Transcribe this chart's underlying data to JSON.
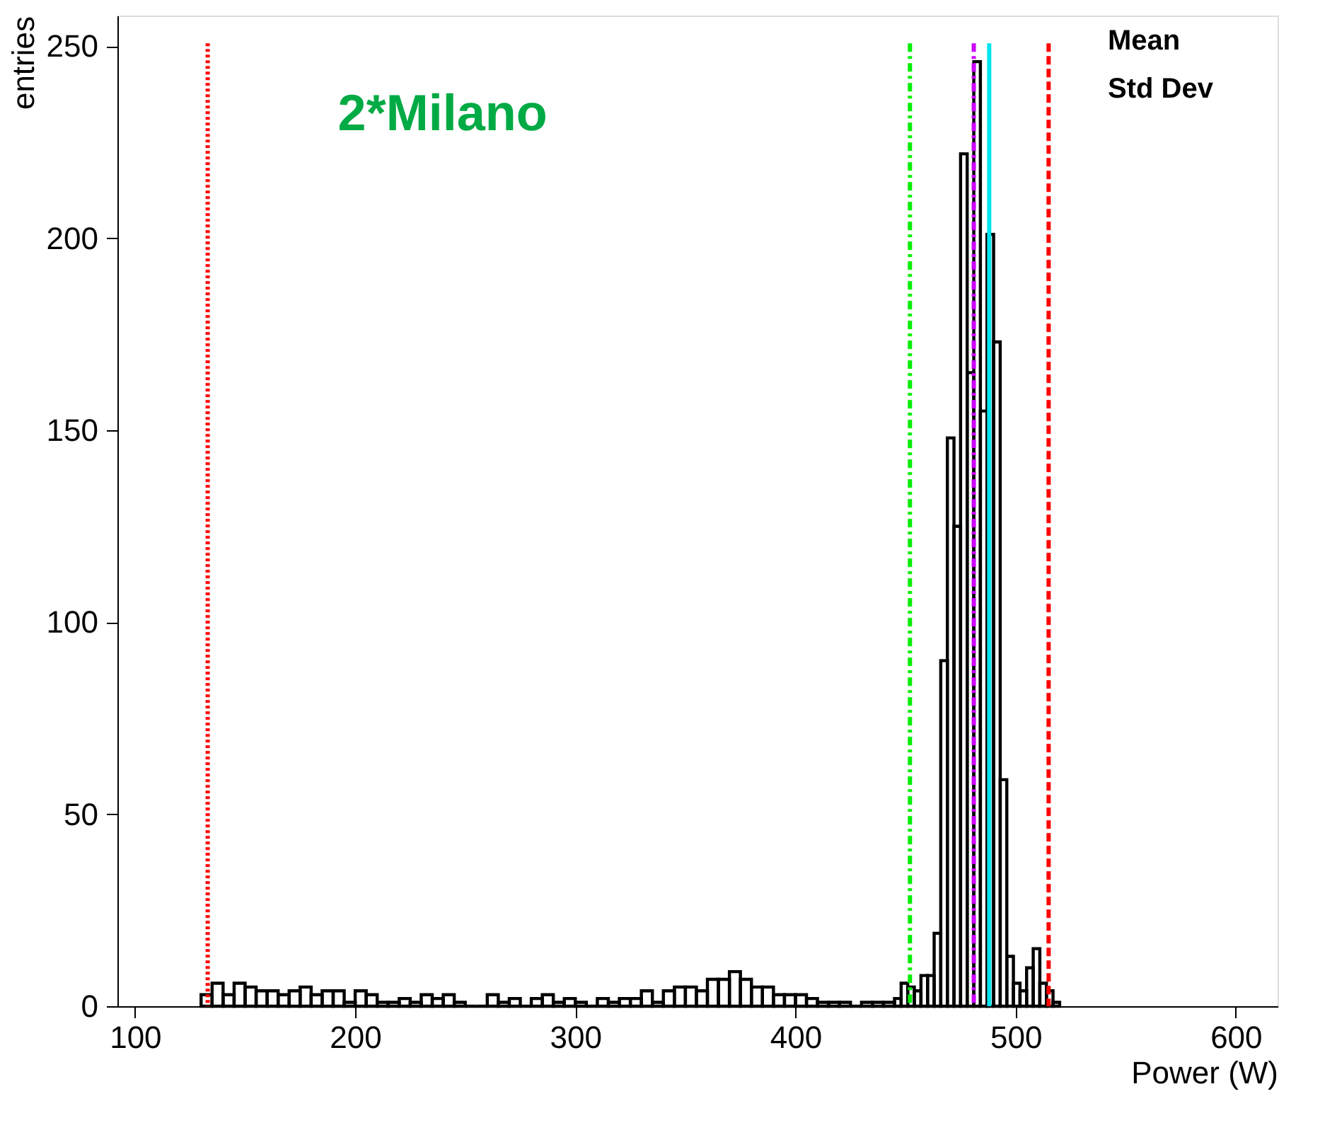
{
  "chart_data": {
    "type": "histogram",
    "xlabel": "Power (W)",
    "ylabel": "entries",
    "bins": [
      130,
      135,
      140,
      145,
      150,
      155,
      160,
      165,
      170,
      175,
      180,
      185,
      190,
      195,
      200,
      205,
      210,
      215,
      220,
      225,
      230,
      235,
      240,
      245,
      250,
      255,
      260,
      265,
      270,
      275,
      280,
      285,
      290,
      295,
      300,
      305,
      310,
      315,
      320,
      325,
      330,
      335,
      340,
      345,
      350,
      355,
      360,
      365,
      370,
      375,
      380,
      385,
      390,
      395,
      400,
      405,
      410,
      415,
      420,
      425,
      430,
      435,
      440,
      445,
      448,
      451,
      454,
      457,
      460,
      463,
      466,
      469,
      472,
      475,
      478,
      481,
      484,
      487,
      490,
      493,
      496,
      499,
      502,
      505,
      508,
      511,
      514,
      517,
      520
    ],
    "values": [
      3,
      6,
      3,
      6,
      5,
      4,
      4,
      3,
      4,
      5,
      3,
      4,
      4,
      1,
      4,
      3,
      1,
      1,
      2,
      1,
      3,
      2,
      3,
      1,
      0,
      0,
      3,
      1,
      2,
      0,
      2,
      3,
      1,
      2,
      1,
      0,
      2,
      1,
      2,
      2,
      4,
      1,
      4,
      5,
      5,
      4,
      7,
      7,
      9,
      7,
      5,
      5,
      3,
      3,
      3,
      2,
      1,
      1,
      1,
      0,
      1,
      1,
      1,
      2,
      6,
      5,
      4,
      8,
      8,
      19,
      90,
      148,
      125,
      222,
      165,
      246,
      155,
      201,
      173,
      59,
      13,
      6,
      4,
      10,
      15,
      6,
      4,
      1
    ],
    "color": "#000000",
    "xlim": [
      92,
      619
    ],
    "ylim": [
      0,
      258
    ],
    "xticks": [
      100,
      200,
      300,
      400,
      500,
      600
    ],
    "yticks": [
      0,
      50,
      100,
      150,
      200,
      250
    ],
    "grid": false,
    "ref_lines": [
      {
        "axis": "x",
        "value": 133,
        "color": "#ff0000",
        "line_style": "dotted"
      },
      {
        "axis": "x",
        "value": 452,
        "color": "#00ee00",
        "line_style": "dashdot"
      },
      {
        "axis": "x",
        "value": 481,
        "color": "#cc00ff",
        "line_style": "dashdot"
      },
      {
        "axis": "x",
        "value": 488,
        "color": "#00e5ee",
        "line_style": "solid"
      },
      {
        "axis": "x",
        "value": 515,
        "color": "#ff0000",
        "line_style": "dashed"
      }
    ],
    "annotations": [
      "2*Milano",
      "Mean",
      "Std Dev"
    ]
  }
}
